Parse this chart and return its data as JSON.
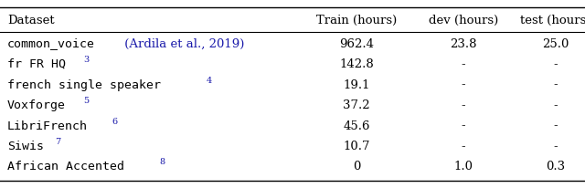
{
  "headers": [
    "Dataset",
    "Train (hours)",
    "dev (hours)",
    "test (hours)"
  ],
  "rows": [
    {
      "dataset_main": "common_voice",
      "dataset_cite": " (Ardila et al., 2019)",
      "dataset_sup": "",
      "dataset_main_font": "monospace",
      "train": "962.4",
      "dev": "23.8",
      "test": "25.0"
    },
    {
      "dataset_main": "fr FR HQ",
      "dataset_cite": "",
      "dataset_sup": "3",
      "dataset_main_font": "monospace",
      "train": "142.8",
      "dev": "-",
      "test": "-"
    },
    {
      "dataset_main": "french single speaker",
      "dataset_cite": "",
      "dataset_sup": "4",
      "dataset_main_font": "monospace",
      "train": "19.1",
      "dev": "-",
      "test": "-"
    },
    {
      "dataset_main": "Voxforge",
      "dataset_cite": "",
      "dataset_sup": "5",
      "dataset_main_font": "monospace",
      "train": "37.2",
      "dev": "-",
      "test": "-"
    },
    {
      "dataset_main": "LibriFrench",
      "dataset_cite": "",
      "dataset_sup": "6",
      "dataset_main_font": "monospace",
      "train": "45.6",
      "dev": "-",
      "test": "-"
    },
    {
      "dataset_main": "Siwis",
      "dataset_cite": "",
      "dataset_sup": "7",
      "dataset_main_font": "monospace",
      "train": "10.7",
      "dev": "-",
      "test": "-"
    },
    {
      "dataset_main": "African Accented",
      "dataset_cite": "",
      "dataset_sup": "8",
      "dataset_main_font": "monospace",
      "train": "0",
      "dev": "1.0",
      "test": "0.3"
    }
  ],
  "main_color": "#000000",
  "cite_color": "#1a1aaa",
  "sup_color": "#1a1aaa",
  "bg_color": "#ffffff",
  "main_fs": 9.5,
  "header_fs": 9.5,
  "sup_fs": 7.0,
  "cite_fs": 9.5
}
